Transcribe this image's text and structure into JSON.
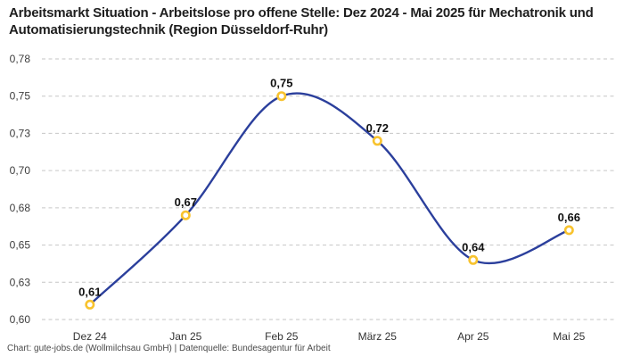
{
  "chart_data": {
    "type": "line",
    "title": "Arbeitsmarkt Situation - Arbeitslose pro offene Stelle: Dez 2024 - Mai 2025 für Mechatronik und Automatisierungstechnik (Region Düsseldorf-Ruhr)",
    "categories": [
      "Dez 24",
      "Jan 25",
      "Feb 25",
      "März 25",
      "Apr 25",
      "Mai 25"
    ],
    "values": [
      0.61,
      0.67,
      0.75,
      0.72,
      0.64,
      0.66
    ],
    "value_labels": [
      "0,61",
      "0,67",
      "0,75",
      "0,72",
      "0,64",
      "0,66"
    ],
    "series_name": "Arbeitslose pro offene Stelle",
    "y_axis": {
      "min": 0.6,
      "max": 0.775,
      "ticks": [
        0.6,
        0.625,
        0.65,
        0.675,
        0.7,
        0.725,
        0.75,
        0.775
      ],
      "tick_labels": [
        "0,60",
        "0,63",
        "0,65",
        "0,68",
        "0,70",
        "0,73",
        "0,75",
        "0,78"
      ]
    },
    "grid": "horizontal-dashed",
    "legend": "none",
    "curve": "smooth",
    "colors": {
      "line": "#2b3f9c",
      "marker_stroke": "#f8c32e",
      "marker_fill": "#ffffff",
      "grid": "#c6c6c6",
      "value_label": "#111111",
      "axis_text": "#3d3d3d",
      "title_text": "#1e1e1e",
      "footer_text": "#4a4a4a"
    }
  },
  "footer": {
    "text": "Chart: gute-jobs.de (Wollmilchsau GmbH) | Datenquelle: Bundesagentur für Arbeit"
  }
}
